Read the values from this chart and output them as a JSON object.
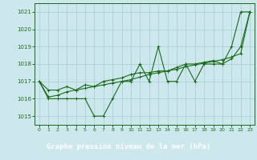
{
  "title": "Graphe pression niveau de la mer (hPa)",
  "bg_color": "#cce8ec",
  "grid_color": "#aaccd4",
  "line_color": "#1a6b1a",
  "xlim": [
    -0.5,
    23.5
  ],
  "ylim": [
    1014.5,
    1021.5
  ],
  "yticks": [
    1015,
    1016,
    1017,
    1018,
    1019,
    1020,
    1021
  ],
  "xticks": [
    0,
    1,
    2,
    3,
    4,
    5,
    6,
    7,
    8,
    9,
    10,
    11,
    12,
    13,
    14,
    15,
    16,
    17,
    18,
    19,
    20,
    21,
    22,
    23
  ],
  "series1_x": [
    0,
    1,
    2,
    3,
    4,
    5,
    6,
    7,
    8,
    9,
    10,
    11,
    12,
    13,
    14,
    15,
    16,
    17,
    18,
    19,
    20,
    21,
    22,
    23
  ],
  "series1_y": [
    1017.0,
    1016.0,
    1016.0,
    1016.0,
    1016.0,
    1016.0,
    1015.0,
    1015.0,
    1016.0,
    1017.0,
    1017.0,
    1018.0,
    1017.0,
    1019.0,
    1017.0,
    1017.0,
    1018.0,
    1017.0,
    1018.0,
    1018.0,
    1018.0,
    1019.0,
    1021.0,
    1021.0
  ],
  "series2_x": [
    0,
    1,
    2,
    3,
    4,
    5,
    6,
    7,
    8,
    9,
    10,
    11,
    12,
    13,
    14,
    15,
    16,
    17,
    18,
    19,
    20,
    21,
    22,
    23
  ],
  "series2_y": [
    1017.0,
    1016.5,
    1016.5,
    1016.7,
    1016.5,
    1016.8,
    1016.7,
    1017.0,
    1017.1,
    1017.2,
    1017.4,
    1017.5,
    1017.5,
    1017.6,
    1017.6,
    1017.8,
    1018.0,
    1018.0,
    1018.1,
    1018.2,
    1018.0,
    1018.3,
    1019.0,
    1021.0
  ],
  "series3_x": [
    0,
    1,
    2,
    3,
    4,
    5,
    6,
    7,
    8,
    9,
    10,
    11,
    12,
    13,
    14,
    15,
    16,
    17,
    18,
    19,
    20,
    21,
    22,
    23
  ],
  "series3_y": [
    1017.0,
    1016.1,
    1016.2,
    1016.4,
    1016.5,
    1016.6,
    1016.7,
    1016.8,
    1016.9,
    1017.0,
    1017.1,
    1017.25,
    1017.4,
    1017.5,
    1017.6,
    1017.7,
    1017.85,
    1017.95,
    1018.05,
    1018.15,
    1018.25,
    1018.4,
    1018.6,
    1021.0
  ],
  "xlabel_color": "#1a6b1a",
  "bottom_bar_color": "#2d7a2d",
  "bottom_bar_height": 0.18
}
